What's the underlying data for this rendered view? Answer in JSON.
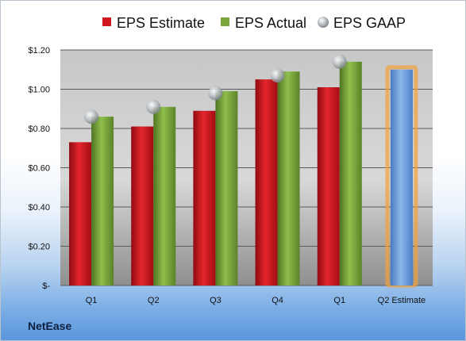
{
  "company": "NetEase",
  "chart_data": {
    "type": "bar",
    "categories": [
      "Q1",
      "Q2",
      "Q3",
      "Q4",
      "Q1",
      "Q2 Estimate"
    ],
    "series": [
      {
        "name": "EPS Estimate",
        "values": [
          0.73,
          0.81,
          0.89,
          1.05,
          1.01,
          null
        ],
        "color": "#d0161e"
      },
      {
        "name": "EPS Actual",
        "values": [
          0.86,
          0.91,
          0.99,
          1.09,
          1.14,
          null
        ],
        "color": "#7aa63a"
      },
      {
        "name": "EPS GAAP",
        "type": "scatter",
        "values": [
          0.86,
          0.91,
          0.98,
          1.07,
          1.14,
          null
        ],
        "color": "#b8bcc0"
      },
      {
        "name": "Q2 Estimate",
        "values": [
          null,
          null,
          null,
          null,
          null,
          1.1
        ],
        "color": "#6a9ad6",
        "highlight": "#f5a13a"
      }
    ],
    "y_ticks": [
      "$1.20",
      "$1.00",
      "$0.80",
      "$0.60",
      "$0.40",
      "$0.20",
      "$-"
    ],
    "y_tick_values": [
      1.2,
      1.0,
      0.8,
      0.6,
      0.4,
      0.2,
      0
    ],
    "ylim": [
      0,
      1.2
    ],
    "grid": true,
    "legend": "top"
  }
}
